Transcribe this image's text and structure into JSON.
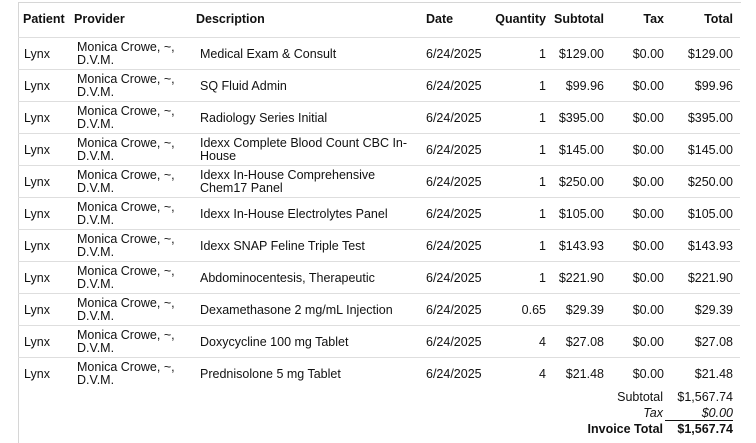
{
  "columns": {
    "patient": "Patient",
    "provider": "Provider",
    "description": "Description",
    "date": "Date",
    "quantity": "Quantity",
    "subtotal": "Subtotal",
    "tax": "Tax",
    "total": "Total"
  },
  "rows": [
    {
      "patient": "Lynx",
      "provider": "Monica Crowe, ~, D.V.M.",
      "description": "Medical Exam & Consult",
      "date": "6/24/2025",
      "quantity": "1",
      "subtotal": "$129.00",
      "tax": "$0.00",
      "total": "$129.00"
    },
    {
      "patient": "Lynx",
      "provider": "Monica Crowe, ~, D.V.M.",
      "description": "SQ Fluid Admin",
      "date": "6/24/2025",
      "quantity": "1",
      "subtotal": "$99.96",
      "tax": "$0.00",
      "total": "$99.96"
    },
    {
      "patient": "Lynx",
      "provider": "Monica Crowe, ~, D.V.M.",
      "description": "Radiology Series Initial",
      "date": "6/24/2025",
      "quantity": "1",
      "subtotal": "$395.00",
      "tax": "$0.00",
      "total": "$395.00"
    },
    {
      "patient": "Lynx",
      "provider": "Monica Crowe, ~, D.V.M.",
      "description": "Idexx Complete Blood Count CBC In-House",
      "date": "6/24/2025",
      "quantity": "1",
      "subtotal": "$145.00",
      "tax": "$0.00",
      "total": "$145.00"
    },
    {
      "patient": "Lynx",
      "provider": "Monica Crowe, ~, D.V.M.",
      "description": "Idexx In-House Comprehensive Chem17 Panel",
      "date": "6/24/2025",
      "quantity": "1",
      "subtotal": "$250.00",
      "tax": "$0.00",
      "total": "$250.00"
    },
    {
      "patient": "Lynx",
      "provider": "Monica Crowe, ~, D.V.M.",
      "description": "Idexx In-House Electrolytes Panel",
      "date": "6/24/2025",
      "quantity": "1",
      "subtotal": "$105.00",
      "tax": "$0.00",
      "total": "$105.00"
    },
    {
      "patient": "Lynx",
      "provider": "Monica Crowe, ~, D.V.M.",
      "description": "Idexx SNAP Feline Triple Test",
      "date": "6/24/2025",
      "quantity": "1",
      "subtotal": "$143.93",
      "tax": "$0.00",
      "total": "$143.93"
    },
    {
      "patient": "Lynx",
      "provider": "Monica Crowe, ~, D.V.M.",
      "description": "Abdominocentesis, Therapeutic",
      "date": "6/24/2025",
      "quantity": "1",
      "subtotal": "$221.90",
      "tax": "$0.00",
      "total": "$221.90"
    },
    {
      "patient": "Lynx",
      "provider": "Monica Crowe, ~, D.V.M.",
      "description": "Dexamethasone 2 mg/mL Injection",
      "date": "6/24/2025",
      "quantity": "0.65",
      "subtotal": "$29.39",
      "tax": "$0.00",
      "total": "$29.39"
    },
    {
      "patient": "Lynx",
      "provider": "Monica Crowe, ~, D.V.M.",
      "description": "Doxycycline 100 mg Tablet",
      "date": "6/24/2025",
      "quantity": "4",
      "subtotal": "$27.08",
      "tax": "$0.00",
      "total": "$27.08"
    },
    {
      "patient": "Lynx",
      "provider": "Monica Crowe, ~, D.V.M.",
      "description": "Prednisolone 5 mg Tablet",
      "date": "6/24/2025",
      "quantity": "4",
      "subtotal": "$21.48",
      "tax": "$0.00",
      "total": "$21.48"
    }
  ],
  "summary": {
    "subtotal_label": "Subtotal",
    "subtotal_value": "$1,567.74",
    "tax_label": "Tax",
    "tax_value": "$0.00",
    "invoice_total_label": "Invoice Total",
    "invoice_total_value": "$1,567.74"
  }
}
